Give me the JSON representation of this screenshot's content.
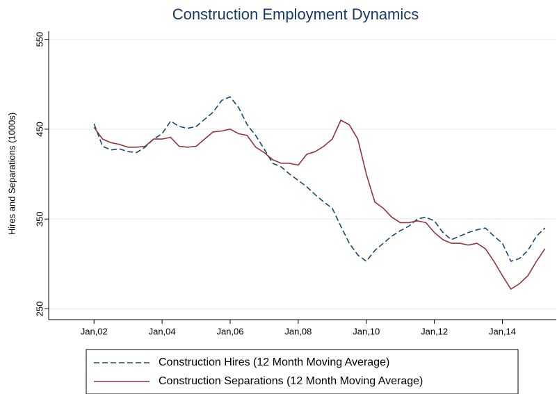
{
  "chart_data": {
    "type": "line",
    "title": "Construction Employment Dynamics",
    "y_label": "Hires and Separations (1000s)",
    "x": [
      "2002-01",
      "2002-04",
      "2002-07",
      "2002-10",
      "2003-01",
      "2003-04",
      "2003-07",
      "2003-10",
      "2004-01",
      "2004-04",
      "2004-07",
      "2004-10",
      "2005-01",
      "2005-04",
      "2005-07",
      "2005-10",
      "2006-01",
      "2006-04",
      "2006-07",
      "2006-10",
      "2007-01",
      "2007-04",
      "2007-07",
      "2007-10",
      "2008-01",
      "2008-04",
      "2008-07",
      "2008-10",
      "2009-01",
      "2009-04",
      "2009-07",
      "2009-10",
      "2010-01",
      "2010-04",
      "2010-07",
      "2010-10",
      "2011-01",
      "2011-04",
      "2011-07",
      "2011-10",
      "2012-01",
      "2012-04",
      "2012-07",
      "2012-10",
      "2013-01",
      "2013-04",
      "2013-07",
      "2013-10",
      "2014-01",
      "2014-04",
      "2014-07",
      "2014-10",
      "2015-01",
      "2015-04"
    ],
    "series": [
      {
        "name": "Construction Hires (12 Month Moving Average)",
        "color": "#1a476f",
        "dash": true,
        "values": [
          456,
          431,
          427,
          428,
          425,
          424,
          430,
          439,
          445,
          459,
          453,
          451,
          453,
          461,
          469,
          482,
          486,
          474,
          455,
          443,
          428,
          412,
          408,
          400,
          393,
          386,
          377,
          369,
          362,
          342,
          323,
          310,
          303,
          315,
          323,
          331,
          337,
          342,
          350,
          352,
          348,
          335,
          327,
          331,
          335,
          338,
          340,
          331,
          323,
          303,
          306,
          315,
          331,
          340
        ]
      },
      {
        "name": "Construction Separations (12 Month Moving Average)",
        "color": "#90353b",
        "dash": false,
        "values": [
          452,
          439,
          435,
          433,
          430,
          430,
          431,
          439,
          439,
          441,
          431,
          430,
          431,
          439,
          447,
          448,
          450,
          445,
          443,
          430,
          424,
          416,
          412,
          412,
          410,
          422,
          425,
          431,
          439,
          460,
          455,
          439,
          400,
          369,
          362,
          352,
          346,
          346,
          348,
          346,
          335,
          327,
          323,
          323,
          321,
          323,
          317,
          303,
          287,
          272,
          278,
          287,
          303,
          317
        ]
      }
    ],
    "xlim": [
      "2000-09",
      "2015-08"
    ],
    "xticks": [
      {
        "value": "2002-01",
        "label": "Jan,02"
      },
      {
        "value": "2004-01",
        "label": "Jan,04"
      },
      {
        "value": "2006-01",
        "label": "Jan,06"
      },
      {
        "value": "2008-01",
        "label": "Jan,08"
      },
      {
        "value": "2010-01",
        "label": "Jan,10"
      },
      {
        "value": "2012-01",
        "label": "Jan,12"
      },
      {
        "value": "2014-01",
        "label": "Jan,14"
      }
    ],
    "ylim": [
      238,
      559
    ],
    "yticks": [
      250,
      350,
      450,
      550
    ],
    "grid": true
  }
}
